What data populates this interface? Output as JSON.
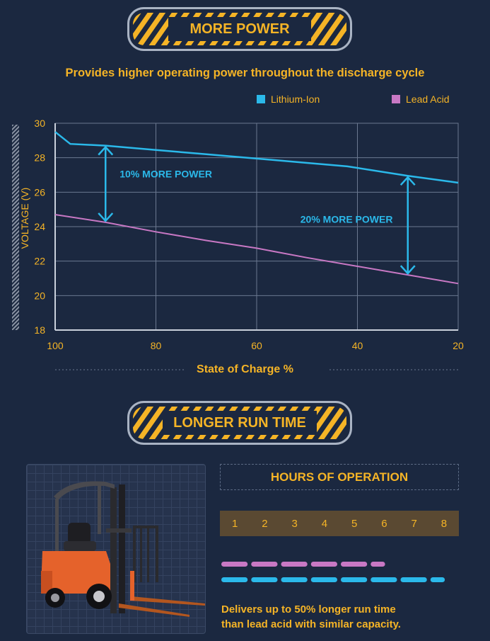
{
  "banners": {
    "top": "MORE POWER",
    "bottom": "LONGER RUN TIME"
  },
  "colors": {
    "background": "#1b2840",
    "accent": "#f5b426",
    "lithium": "#2bb9ea",
    "lead": "#c878c4"
  },
  "chart_data": {
    "type": "line",
    "title": "Provides higher operating power throughout the discharge cycle",
    "xlabel": "State of Charge %",
    "ylabel": "VOLTAGE (V)",
    "xlim": [
      100,
      20
    ],
    "ylim": [
      18,
      30
    ],
    "x_ticks": [
      "100",
      "80",
      "60",
      "40",
      "20"
    ],
    "y_ticks": [
      "30",
      "28",
      "26",
      "24",
      "22",
      "20",
      "18"
    ],
    "grid": true,
    "legend_position": "top-right",
    "series": [
      {
        "name": "Lithium-Ion",
        "x": [
          100,
          97,
          90,
          80,
          70,
          60,
          50,
          42,
          30,
          20
        ],
        "y": [
          29.5,
          28.8,
          28.7,
          28.45,
          28.2,
          27.95,
          27.7,
          27.5,
          26.95,
          26.55
        ]
      },
      {
        "name": "Lead Acid",
        "x": [
          100,
          90,
          80,
          70,
          60,
          50,
          40,
          30,
          20
        ],
        "y": [
          24.7,
          24.25,
          23.7,
          23.2,
          22.75,
          22.2,
          21.7,
          21.2,
          20.7
        ]
      }
    ],
    "annotations": [
      {
        "text": "10% MORE POWER",
        "at_x": 90,
        "from_y": 28.7,
        "to_y": 24.25
      },
      {
        "text": "20% MORE POWER",
        "at_x": 30,
        "from_y": 26.95,
        "to_y": 21.2
      }
    ]
  },
  "runtime": {
    "heading": "HOURS OF OPERATION",
    "hours": [
      "1",
      "2",
      "3",
      "4",
      "5",
      "6",
      "7",
      "8"
    ],
    "lead_acid_hours": 5.3,
    "lithium_hours": 7.3,
    "description_line1": "Delivers up to 50% longer run time",
    "description_line2": "than lead acid with similar capacity."
  }
}
